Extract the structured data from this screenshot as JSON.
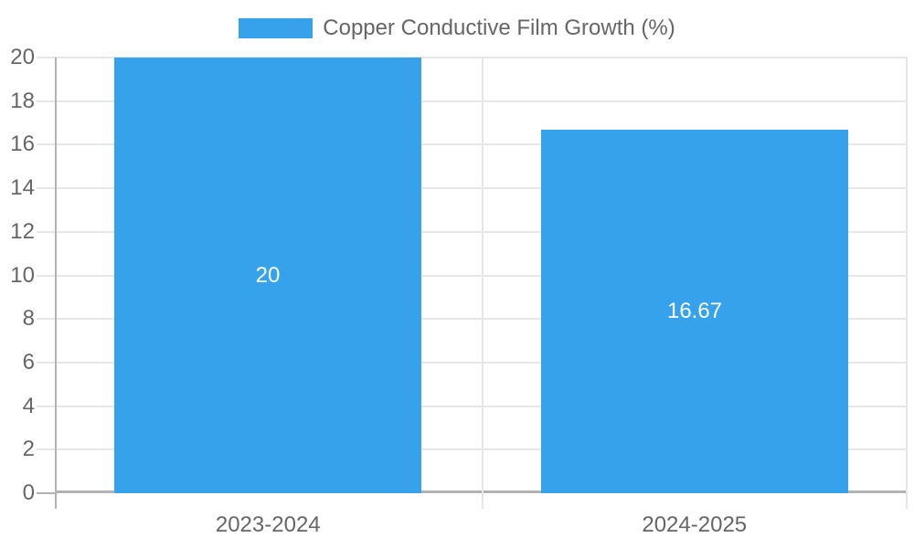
{
  "chart_data": {
    "type": "bar",
    "legend": "Copper Conductive Film Growth (%)",
    "categories": [
      "2023-2024",
      "2024-2025"
    ],
    "values": [
      20,
      16.67
    ],
    "value_labels": [
      "20",
      "16.67"
    ],
    "ylim": [
      0,
      20
    ],
    "yticks": [
      0,
      2,
      4,
      6,
      8,
      10,
      12,
      14,
      16,
      18,
      20
    ],
    "grid": true,
    "legend_position": "top-center",
    "bar_percentage_of_category": 0.72,
    "colors": {
      "bar": "#36a2eb",
      "grid_line": "#e6e6e6",
      "zero_line": "#b3b3b3",
      "tick_text": "#666666",
      "legend_text": "#666666",
      "value_label_text": "#ffffff",
      "background": "#ffffff"
    }
  }
}
